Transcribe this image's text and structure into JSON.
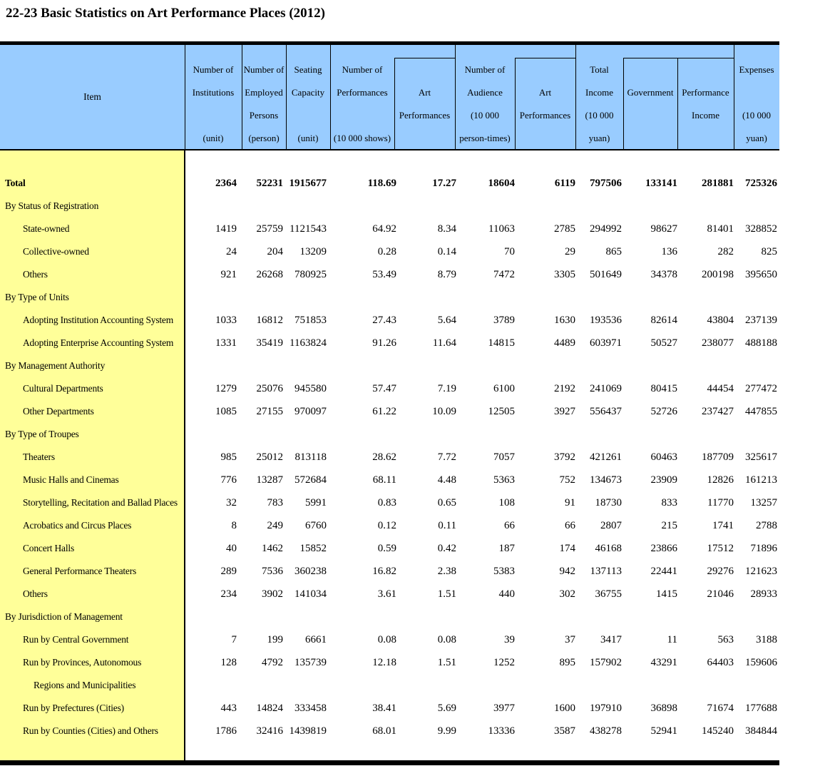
{
  "title": "22-23 Basic Statistics on Art Performance Places (2012)",
  "colors": {
    "header_bg": "#99CCFF",
    "item_column_bg": "#FFFF99",
    "rule": "#000000"
  },
  "table": {
    "header": {
      "columns": [
        {
          "id": "item",
          "lines": [
            {
              "r": 0,
              "t": "Item"
            }
          ]
        },
        {
          "id": "institutions",
          "lines": [
            {
              "r": 1,
              "t": "Number of"
            },
            {
              "r": 2,
              "t": "Institutions"
            },
            {
              "r": 4,
              "t": "(unit)"
            }
          ]
        },
        {
          "id": "employed-persons",
          "lines": [
            {
              "r": 1,
              "t": "Number of"
            },
            {
              "r": 2,
              "t": "Employed"
            },
            {
              "r": 3,
              "t": "Persons"
            },
            {
              "r": 4,
              "t": "(person)"
            }
          ]
        },
        {
          "id": "seating-capacity",
          "lines": [
            {
              "r": 1,
              "t": "Seating"
            },
            {
              "r": 2,
              "t": "Capacity"
            },
            {
              "r": 4,
              "t": "(unit)"
            }
          ]
        },
        {
          "id": "performances",
          "lines": [
            {
              "r": 1,
              "t": "Number of"
            },
            {
              "r": 2,
              "t": "Performances"
            },
            {
              "r": 4,
              "t": "(10 000 shows)"
            }
          ]
        },
        {
          "id": "art-performances-shows",
          "lines": [
            {
              "r": 2,
              "t": "Art"
            },
            {
              "r": 3,
              "t": "Performances"
            }
          ]
        },
        {
          "id": "audience",
          "lines": [
            {
              "r": 1,
              "t": "Number of"
            },
            {
              "r": 2,
              "t": "Audience"
            },
            {
              "r": 3,
              "t": "(10 000"
            },
            {
              "r": 4,
              "t": "person-times)"
            }
          ]
        },
        {
          "id": "art-performances-audience",
          "lines": [
            {
              "r": 2,
              "t": "Art"
            },
            {
              "r": 3,
              "t": "Performances"
            }
          ]
        },
        {
          "id": "total-income",
          "lines": [
            {
              "r": 1,
              "t": "Total"
            },
            {
              "r": 2,
              "t": "Income"
            },
            {
              "r": 3,
              "t": "(10 000"
            },
            {
              "r": 4,
              "t": "yuan)"
            }
          ]
        },
        {
          "id": "government",
          "lines": [
            {
              "r": 2,
              "t": "Government"
            }
          ]
        },
        {
          "id": "performance-income",
          "lines": [
            {
              "r": 2,
              "t": "Performance"
            },
            {
              "r": 3,
              "t": "Income"
            }
          ]
        },
        {
          "id": "expenses",
          "lines": [
            {
              "r": 1,
              "t": "Expenses"
            },
            {
              "r": 3,
              "t": "(10 000"
            },
            {
              "r": 4,
              "t": "yuan)"
            }
          ]
        }
      ]
    },
    "rows": [
      {
        "kind": "total",
        "label": "Total",
        "values": [
          "2364",
          "52231",
          "1915677",
          "118.69",
          "17.27",
          "18604",
          "6119",
          "797506",
          "133141",
          "281881",
          "725326"
        ]
      },
      {
        "kind": "group",
        "label": "By Status of Registration",
        "values": null
      },
      {
        "kind": "item",
        "label": "State-owned",
        "values": [
          "1419",
          "25759",
          "1121543",
          "64.92",
          "8.34",
          "11063",
          "2785",
          "294992",
          "98627",
          "81401",
          "328852"
        ]
      },
      {
        "kind": "item",
        "label": "Collective-owned",
        "values": [
          "24",
          "204",
          "13209",
          "0.28",
          "0.14",
          "70",
          "29",
          "865",
          "136",
          "282",
          "825"
        ]
      },
      {
        "kind": "item",
        "label": "Others",
        "values": [
          "921",
          "26268",
          "780925",
          "53.49",
          "8.79",
          "7472",
          "3305",
          "501649",
          "34378",
          "200198",
          "395650"
        ]
      },
      {
        "kind": "group",
        "label": "By Type of Units",
        "values": null
      },
      {
        "kind": "item",
        "label": "Adopting Institution Accounting System",
        "values": [
          "1033",
          "16812",
          "751853",
          "27.43",
          "5.64",
          "3789",
          "1630",
          "193536",
          "82614",
          "43804",
          "237139"
        ]
      },
      {
        "kind": "item",
        "label": "Adopting Enterprise Accounting System",
        "values": [
          "1331",
          "35419",
          "1163824",
          "91.26",
          "11.64",
          "14815",
          "4489",
          "603971",
          "50527",
          "238077",
          "488188"
        ]
      },
      {
        "kind": "group",
        "label": "By Management Authority",
        "values": null
      },
      {
        "kind": "item",
        "label": "Cultural Departments",
        "values": [
          "1279",
          "25076",
          "945580",
          "57.47",
          "7.19",
          "6100",
          "2192",
          "241069",
          "80415",
          "44454",
          "277472"
        ]
      },
      {
        "kind": "item",
        "label": "Other Departments",
        "values": [
          "1085",
          "27155",
          "970097",
          "61.22",
          "10.09",
          "12505",
          "3927",
          "556437",
          "52726",
          "237427",
          "447855"
        ]
      },
      {
        "kind": "group",
        "label": "By Type of Troupes",
        "values": null
      },
      {
        "kind": "item",
        "label": "Theaters",
        "values": [
          "985",
          "25012",
          "813118",
          "28.62",
          "7.72",
          "7057",
          "3792",
          "421261",
          "60463",
          "187709",
          "325617"
        ]
      },
      {
        "kind": "item",
        "label": "Music Halls and Cinemas",
        "values": [
          "776",
          "13287",
          "572684",
          "68.11",
          "4.48",
          "5363",
          "752",
          "134673",
          "23909",
          "12826",
          "161213"
        ]
      },
      {
        "kind": "item",
        "label": "Storytelling, Recitation and Ballad Places",
        "values": [
          "32",
          "783",
          "5991",
          "0.83",
          "0.65",
          "108",
          "91",
          "18730",
          "833",
          "11770",
          "13257"
        ]
      },
      {
        "kind": "item",
        "label": "Acrobatics and Circus Places",
        "values": [
          "8",
          "249",
          "6760",
          "0.12",
          "0.11",
          "66",
          "66",
          "2807",
          "215",
          "1741",
          "2788"
        ]
      },
      {
        "kind": "item",
        "label": "Concert Halls",
        "values": [
          "40",
          "1462",
          "15852",
          "0.59",
          "0.42",
          "187",
          "174",
          "46168",
          "23866",
          "17512",
          "71896"
        ]
      },
      {
        "kind": "item",
        "label": "General Performance Theaters",
        "values": [
          "289",
          "7536",
          "360238",
          "16.82",
          "2.38",
          "5383",
          "942",
          "137113",
          "22441",
          "29276",
          "121623"
        ]
      },
      {
        "kind": "item",
        "label": "Others",
        "values": [
          "234",
          "3902",
          "141034",
          "3.61",
          "1.51",
          "440",
          "302",
          "36755",
          "1415",
          "21046",
          "28933"
        ]
      },
      {
        "kind": "group",
        "label": "By Jurisdiction of Management",
        "values": null
      },
      {
        "kind": "item",
        "label": "Run by Central Government",
        "values": [
          "7",
          "199",
          "6661",
          "0.08",
          "0.08",
          "39",
          "37",
          "3417",
          "11",
          "563",
          "3188"
        ]
      },
      {
        "kind": "item",
        "label": "Run by Provinces, Autonomous",
        "values": [
          "128",
          "4792",
          "135739",
          "12.18",
          "1.51",
          "1252",
          "895",
          "157902",
          "43291",
          "64403",
          "159606"
        ]
      },
      {
        "kind": "cont",
        "label": "Regions and Municipalities",
        "values": null
      },
      {
        "kind": "item",
        "label": "Run by Prefectures (Cities)",
        "values": [
          "443",
          "14824",
          "333458",
          "38.41",
          "5.69",
          "3977",
          "1600",
          "197910",
          "36898",
          "71674",
          "177688"
        ]
      },
      {
        "kind": "item",
        "label": "Run by Counties (Cities) and Others",
        "values": [
          "1786",
          "32416",
          "1439819",
          "68.01",
          "9.99",
          "13336",
          "3587",
          "438278",
          "52941",
          "145240",
          "384844"
        ]
      }
    ]
  }
}
